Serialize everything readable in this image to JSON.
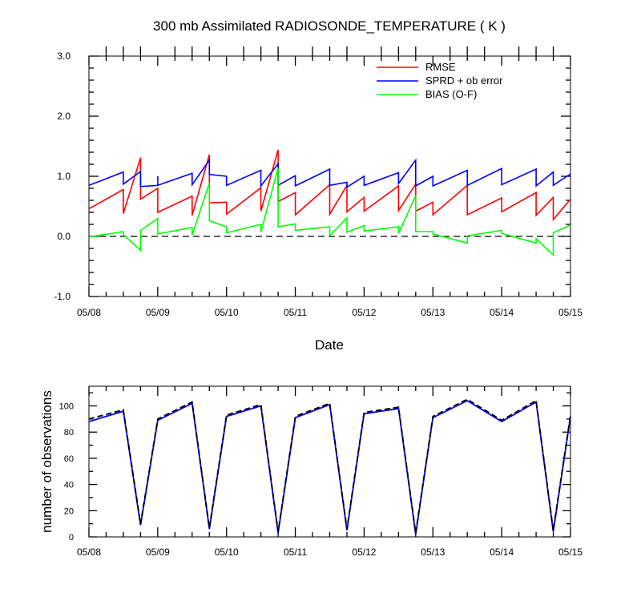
{
  "chart_data": [
    {
      "type": "line",
      "title": "300 mb Assimilated RADIOSONDE_TEMPERATURE ( K )",
      "xlabel": "Date",
      "ylabel": "",
      "x_tick_labels": [
        "05/08",
        "05/09",
        "05/10",
        "05/11",
        "05/12",
        "05/13",
        "05/14",
        "05/15"
      ],
      "y_tick_labels": [
        "-1.0",
        "0.0",
        "1.0",
        "2.0",
        "3.0"
      ],
      "ylim": [
        -1.0,
        3.0
      ],
      "xlim_days": [
        0,
        7
      ],
      "reference_line": {
        "y": 0.0,
        "style": "dashed"
      },
      "legend_position": "top-right",
      "series": [
        {
          "name": "RMSE",
          "color": "#ff0000",
          "segments": [
            [
              [
                0.0,
                0.46
              ],
              [
                0.5,
                0.78
              ]
            ],
            [
              [
                0.5,
                0.38
              ],
              [
                0.75,
                1.31
              ]
            ],
            [
              [
                0.75,
                0.62
              ],
              [
                1.0,
                0.8
              ]
            ],
            [
              [
                1.0,
                0.4
              ],
              [
                1.5,
                0.67
              ]
            ],
            [
              [
                1.5,
                0.35
              ],
              [
                1.75,
                1.36
              ]
            ],
            [
              [
                1.75,
                0.56
              ],
              [
                2.0,
                0.57
              ]
            ],
            [
              [
                2.0,
                0.37
              ],
              [
                2.5,
                0.81
              ]
            ],
            [
              [
                2.5,
                0.42
              ],
              [
                2.75,
                1.44
              ]
            ],
            [
              [
                2.75,
                0.58
              ],
              [
                3.0,
                0.73
              ]
            ],
            [
              [
                3.0,
                0.36
              ],
              [
                3.5,
                0.86
              ]
            ],
            [
              [
                3.5,
                0.37
              ],
              [
                3.75,
                0.85
              ]
            ],
            [
              [
                3.75,
                0.41
              ],
              [
                4.0,
                0.65
              ]
            ],
            [
              [
                4.0,
                0.42
              ],
              [
                4.5,
                0.84
              ]
            ],
            [
              [
                4.5,
                0.43
              ],
              [
                4.75,
                0.87
              ]
            ],
            [
              [
                4.75,
                0.42
              ],
              [
                5.0,
                0.57
              ]
            ],
            [
              [
                5.0,
                0.36
              ],
              [
                5.5,
                0.85
              ]
            ],
            [
              [
                5.5,
                0.36
              ],
              [
                6.0,
                0.64
              ]
            ],
            [
              [
                6.0,
                0.41
              ],
              [
                6.5,
                0.73
              ]
            ],
            [
              [
                6.5,
                0.35
              ],
              [
                6.75,
                0.65
              ]
            ],
            [
              [
                6.75,
                0.28
              ],
              [
                7.0,
                0.62
              ]
            ]
          ]
        },
        {
          "name": "SPRD + ob error",
          "color": "#0000ff",
          "segments": [
            [
              [
                0.0,
                0.85
              ],
              [
                0.5,
                1.07
              ]
            ],
            [
              [
                0.5,
                0.87
              ],
              [
                0.75,
                1.08
              ]
            ],
            [
              [
                0.75,
                0.83
              ],
              [
                1.0,
                0.85
              ]
            ],
            [
              [
                1.0,
                0.84
              ],
              [
                1.0,
                1.0
              ]
            ],
            [
              [
                1.0,
                0.85
              ],
              [
                1.5,
                1.05
              ]
            ],
            [
              [
                1.5,
                0.86
              ],
              [
                1.75,
                1.27
              ]
            ],
            [
              [
                1.75,
                1.03
              ],
              [
                2.0,
                1.0
              ]
            ],
            [
              [
                2.0,
                0.85
              ],
              [
                2.5,
                1.1
              ]
            ],
            [
              [
                2.5,
                0.84
              ],
              [
                2.75,
                1.21
              ]
            ],
            [
              [
                2.75,
                0.85
              ],
              [
                3.0,
                1.01
              ]
            ],
            [
              [
                3.0,
                0.84
              ],
              [
                3.5,
                1.12
              ]
            ],
            [
              [
                3.5,
                0.85
              ],
              [
                3.75,
                0.9
              ]
            ],
            [
              [
                3.75,
                0.82
              ],
              [
                4.0,
                1.0
              ]
            ],
            [
              [
                4.0,
                0.85
              ],
              [
                4.5,
                1.06
              ]
            ],
            [
              [
                4.5,
                0.88
              ],
              [
                4.75,
                1.27
              ]
            ],
            [
              [
                4.75,
                0.84
              ],
              [
                5.0,
                1.0
              ]
            ],
            [
              [
                5.0,
                0.84
              ],
              [
                5.5,
                1.1
              ]
            ],
            [
              [
                5.5,
                0.85
              ],
              [
                6.0,
                1.13
              ]
            ],
            [
              [
                6.0,
                0.86
              ],
              [
                6.5,
                1.12
              ]
            ],
            [
              [
                6.5,
                0.84
              ],
              [
                6.75,
                1.07
              ]
            ],
            [
              [
                6.75,
                0.85
              ],
              [
                7.0,
                1.04
              ]
            ]
          ]
        },
        {
          "name": "BIAS (O-F)",
          "color": "#00ff00",
          "segments": [
            [
              [
                0.0,
                -0.01
              ],
              [
                0.5,
                0.08
              ]
            ],
            [
              [
                0.5,
                0.03
              ],
              [
                0.75,
                -0.23
              ]
            ],
            [
              [
                0.75,
                0.1
              ],
              [
                1.0,
                0.3
              ]
            ],
            [
              [
                1.0,
                0.04
              ],
              [
                1.5,
                0.15
              ]
            ],
            [
              [
                1.5,
                0.02
              ],
              [
                1.75,
                0.89
              ]
            ],
            [
              [
                1.75,
                0.26
              ],
              [
                2.0,
                0.16
              ]
            ],
            [
              [
                2.0,
                0.06
              ],
              [
                2.5,
                0.2
              ]
            ],
            [
              [
                2.5,
                0.07
              ],
              [
                2.75,
                1.14
              ]
            ],
            [
              [
                2.75,
                0.16
              ],
              [
                3.0,
                0.21
              ]
            ],
            [
              [
                3.0,
                0.1
              ],
              [
                3.5,
                0.16
              ]
            ],
            [
              [
                3.5,
                0.01
              ],
              [
                3.75,
                0.31
              ]
            ],
            [
              [
                3.75,
                0.07
              ],
              [
                4.0,
                0.18
              ]
            ],
            [
              [
                4.0,
                0.09
              ],
              [
                4.5,
                0.16
              ]
            ],
            [
              [
                4.5,
                0.05
              ],
              [
                4.75,
                0.68
              ]
            ],
            [
              [
                4.75,
                0.08
              ],
              [
                5.0,
                0.08
              ]
            ],
            [
              [
                5.0,
                0.04
              ],
              [
                5.5,
                -0.11
              ]
            ],
            [
              [
                5.5,
                0.01
              ],
              [
                6.0,
                0.1
              ]
            ],
            [
              [
                6.0,
                0.05
              ],
              [
                6.5,
                -0.11
              ]
            ],
            [
              [
                6.5,
                -0.04
              ],
              [
                6.75,
                -0.31
              ]
            ],
            [
              [
                6.75,
                0.06
              ],
              [
                7.0,
                0.19
              ]
            ]
          ]
        }
      ]
    },
    {
      "type": "line",
      "title": "",
      "xlabel": "",
      "ylabel": "number of observations",
      "x_tick_labels": [
        "05/08",
        "05/09",
        "05/10",
        "05/11",
        "05/12",
        "05/13",
        "05/14",
        "05/15"
      ],
      "y_tick_labels": [
        "0",
        "20",
        "40",
        "60",
        "80",
        "100"
      ],
      "ylim": [
        0,
        115
      ],
      "xlim_days": [
        0,
        7
      ],
      "series": [
        {
          "color": "#0000ff",
          "style": "solid",
          "x": [
            0.0,
            0.5,
            0.75,
            1.0,
            1.5,
            1.75,
            2.0,
            2.5,
            2.75,
            3.0,
            3.5,
            3.75,
            4.0,
            4.5,
            4.75,
            5.0,
            5.5,
            6.0,
            6.5,
            6.75,
            7.0
          ],
          "y": [
            88,
            96,
            9,
            89,
            102,
            6,
            92,
            100,
            3,
            91,
            101,
            5,
            94,
            98,
            2,
            91,
            104,
            88,
            103,
            4,
            92
          ]
        },
        {
          "color": "#000000",
          "style": "dashed",
          "x": [
            0.0,
            0.5,
            0.75,
            1.0,
            1.5,
            1.75,
            2.0,
            2.5,
            2.75,
            3.0,
            3.5,
            3.75,
            4.0,
            4.5,
            4.75,
            5.0,
            5.5,
            6.0,
            6.5,
            6.75,
            7.0
          ],
          "y": [
            90,
            97,
            10,
            90,
            103,
            7,
            93,
            101,
            4,
            92,
            102,
            6,
            95,
            99,
            3,
            92,
            105,
            89,
            104,
            5,
            93
          ]
        }
      ]
    }
  ]
}
